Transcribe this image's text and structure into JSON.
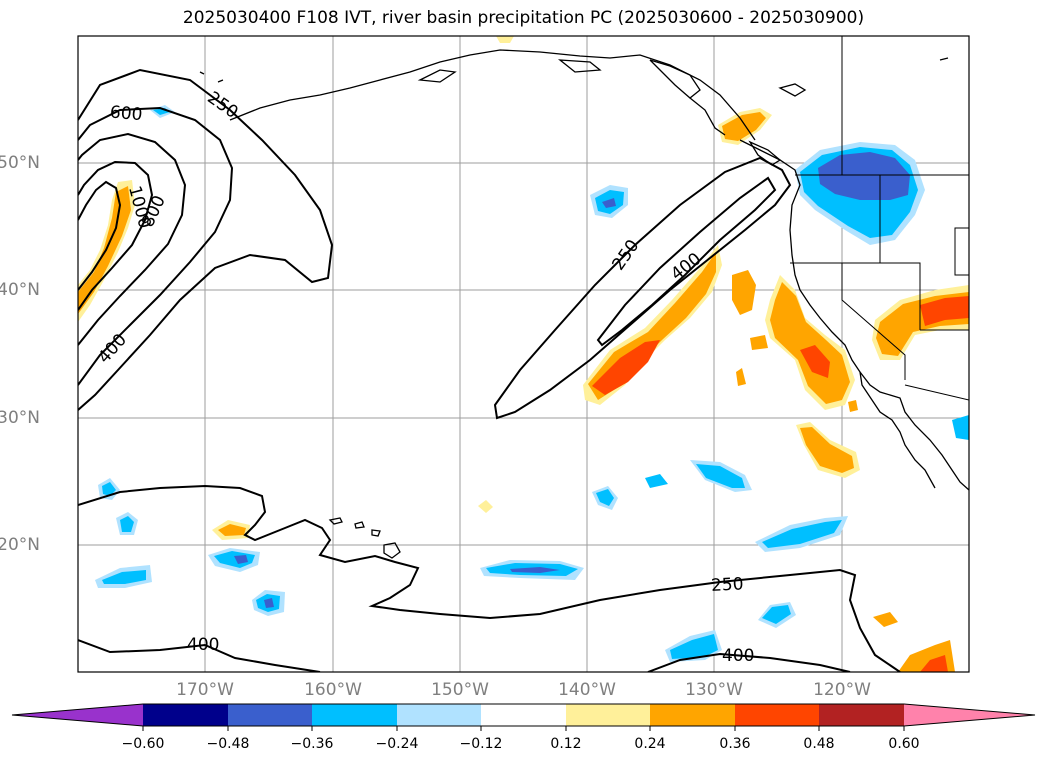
{
  "title": "2025030400 F108 IVT, river basin precipitation PC (2025030600 - 2025030900)",
  "map": {
    "projection": "PlateCarree",
    "lon_range": [
      -180,
      -110
    ],
    "lat_range": [
      10,
      60
    ],
    "gridlines": true,
    "lon_labels": [
      "170°W",
      "160°W",
      "150°W",
      "140°W",
      "130°W",
      "120°W"
    ],
    "lat_labels": [
      "50°N",
      "40°N",
      "30°N",
      "20°N"
    ],
    "lon_values": [
      -170,
      -160,
      -150,
      -140,
      -130,
      -120
    ],
    "lat_values": [
      50,
      40,
      30,
      20
    ]
  },
  "ivt_contours": {
    "levels": [
      250,
      400,
      600,
      800,
      1000
    ],
    "labels": [
      "250",
      "250",
      "250",
      "400",
      "400",
      "400",
      "400",
      "600",
      "800",
      "1000"
    ]
  },
  "colorbar": {
    "ticks": [
      "−0.60",
      "−0.48",
      "−0.36",
      "−0.24",
      "−0.12",
      "0.12",
      "0.24",
      "0.36",
      "0.48",
      "0.60"
    ],
    "colors": [
      "#9932cc",
      "#00008b",
      "#3a5fcd",
      "#00bfff",
      "#b0e2ff",
      "#ffffff",
      "#fff09a",
      "#ffa500",
      "#ff4500",
      "#b22222",
      "#ff82ab"
    ],
    "extend": "both"
  }
}
